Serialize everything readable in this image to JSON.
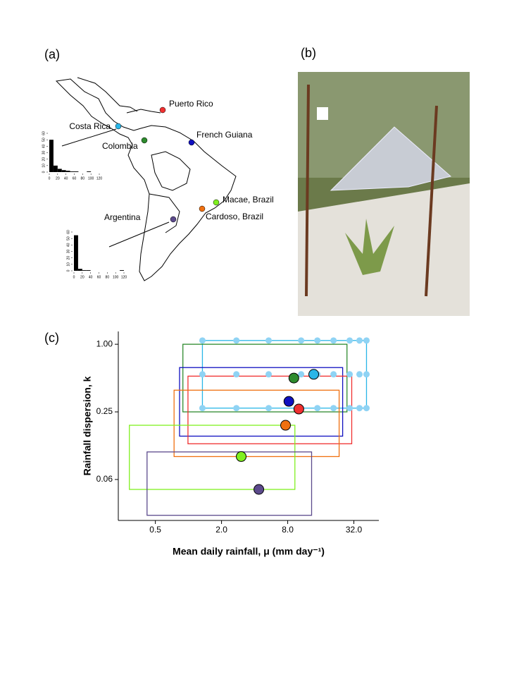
{
  "panels": [
    "(a)",
    "(b)",
    "(c)"
  ],
  "map": {
    "places": [
      {
        "label": "Puerto Rico",
        "color": "#f03030"
      },
      {
        "label": "Costa Rica",
        "color": "#29b6e8"
      },
      {
        "label": "Colombia",
        "color": "#2e8b2e"
      },
      {
        "label": "French Guiana",
        "color": "#1010c0"
      },
      {
        "label": "Macae, Brazil",
        "color": "#80f020"
      },
      {
        "label": "Cardoso, Brazil",
        "color": "#f07010"
      },
      {
        "label": "Argentina",
        "color": "#5c4a8c"
      }
    ]
  },
  "chart_data": [
    {
      "type": "histogram",
      "bins": [
        0,
        10,
        20,
        30,
        40,
        50,
        60,
        70,
        80,
        90,
        100,
        110,
        120
      ],
      "values": [
        50,
        10,
        5,
        3,
        2,
        1,
        1,
        0,
        0,
        1,
        0,
        0
      ],
      "color": "#000000",
      "xlim": [
        0,
        120
      ],
      "ylim": [
        0,
        60
      ],
      "xticks": [
        0,
        20,
        40,
        60,
        80,
        100,
        120
      ],
      "yticks": [
        0,
        10,
        20,
        30,
        40,
        50,
        60
      ]
    },
    {
      "type": "histogram",
      "bins": [
        0,
        10,
        20,
        30,
        40,
        50,
        60,
        70,
        80,
        90,
        100,
        110,
        120
      ],
      "values": [
        55,
        3,
        1,
        1,
        0,
        0,
        0,
        0,
        0,
        0,
        0,
        1
      ],
      "color": "#000000",
      "xlim": [
        0,
        120
      ],
      "ylim": [
        0,
        60
      ],
      "xticks": [
        0,
        20,
        40,
        60,
        80,
        100,
        120
      ],
      "yticks": [
        0,
        10,
        20,
        30,
        40,
        50,
        60
      ]
    },
    {
      "type": "scatter",
      "xlabel": "Mean daily rainfall, μ (mm  day⁻¹)",
      "ylabel": "Rainfall dispersion, k",
      "xscale": "log",
      "yscale": "log",
      "xlim": [
        0.23,
        54
      ],
      "ylim": [
        0.027,
        1.3
      ],
      "xticks": [
        0.5,
        {
          "value": 2,
          "label": "2.0"
        },
        {
          "value": 8,
          "label": "8.0"
        },
        {
          "value": 32,
          "label": "32.0"
        }
      ],
      "yticks": [
        {
          "value": 0.0625,
          "label": "0.06"
        },
        0.25,
        {
          "value": 1,
          "label": "1.00"
        }
      ],
      "grid_points": {
        "color": "#8fd3f4",
        "x": [
          1.34,
          2.73,
          5.37,
          10.6,
          14.9,
          20.9,
          29.3,
          36.0,
          41.7,
          1.34,
          2.73,
          5.37,
          10.6,
          14.9,
          20.9,
          29.3,
          36.0,
          41.7,
          1.34,
          2.73,
          5.37,
          10.6,
          14.9,
          20.9,
          29.3,
          36.0,
          41.7
        ],
        "values": [
          1.08,
          1.08,
          1.08,
          1.08,
          1.08,
          1.08,
          1.08,
          1.08,
          1.08,
          0.54,
          0.54,
          0.54,
          0.54,
          0.54,
          0.54,
          0.54,
          0.54,
          0.54,
          0.27,
          0.27,
          0.27,
          0.27,
          0.27,
          0.27,
          0.27,
          0.27,
          0.27
        ]
      },
      "series": [
        {
          "color": "#29b6e8",
          "x": [
            13.8
          ],
          "values": [
            0.54
          ],
          "box_x": [
            1.34,
            41.7
          ],
          "box_y": [
            0.27,
            1.08
          ]
        },
        {
          "color": "#2e8b2e",
          "x": [
            9.1
          ],
          "values": [
            0.5
          ],
          "box_x": [
            0.89,
            27.7
          ],
          "box_y": [
            0.25,
            1.0
          ]
        },
        {
          "color": "#1010c0",
          "x": [
            8.2
          ],
          "values": [
            0.31
          ],
          "box_x": [
            0.83,
            25.3
          ],
          "box_y": [
            0.152,
            0.62
          ]
        },
        {
          "color": "#f03030",
          "x": [
            10.1
          ],
          "values": [
            0.265
          ],
          "box_x": [
            0.99,
            30.6
          ],
          "box_y": [
            0.13,
            0.52
          ]
        },
        {
          "color": "#f07010",
          "x": [
            7.65
          ],
          "values": [
            0.19
          ],
          "box_x": [
            0.74,
            23.5
          ],
          "box_y": [
            0.1,
            0.39
          ]
        },
        {
          "color": "#80f020",
          "x": [
            3.02
          ],
          "values": [
            0.1
          ],
          "box_x": [
            0.29,
            9.3
          ],
          "box_y": [
            0.051,
            0.19
          ]
        },
        {
          "color": "#5c4a8c",
          "x": [
            4.37
          ],
          "values": [
            0.051
          ],
          "box_x": [
            0.42,
            13.2
          ],
          "box_y": [
            0.03,
            0.11
          ]
        }
      ]
    }
  ]
}
